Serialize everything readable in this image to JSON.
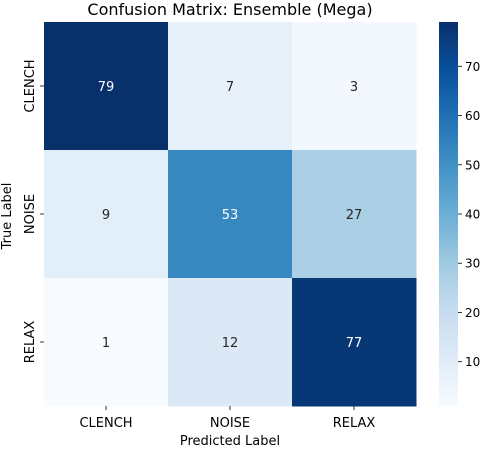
{
  "chart_data": {
    "type": "heatmap",
    "title": "Confusion Matrix: Ensemble (Mega)",
    "xlabel": "Predicted Label",
    "ylabel": "True Label",
    "x_categories": [
      "CLENCH",
      "NOISE",
      "RELAX"
    ],
    "y_categories": [
      "CLENCH",
      "NOISE",
      "RELAX"
    ],
    "values": [
      [
        79,
        7,
        3
      ],
      [
        9,
        53,
        27
      ],
      [
        1,
        12,
        77
      ]
    ],
    "colormap": "Blues",
    "vmin": 1,
    "vmax": 79,
    "colorbar_ticks": [
      10,
      20,
      30,
      40,
      50,
      60,
      70
    ],
    "annotate": true,
    "grid": false
  }
}
